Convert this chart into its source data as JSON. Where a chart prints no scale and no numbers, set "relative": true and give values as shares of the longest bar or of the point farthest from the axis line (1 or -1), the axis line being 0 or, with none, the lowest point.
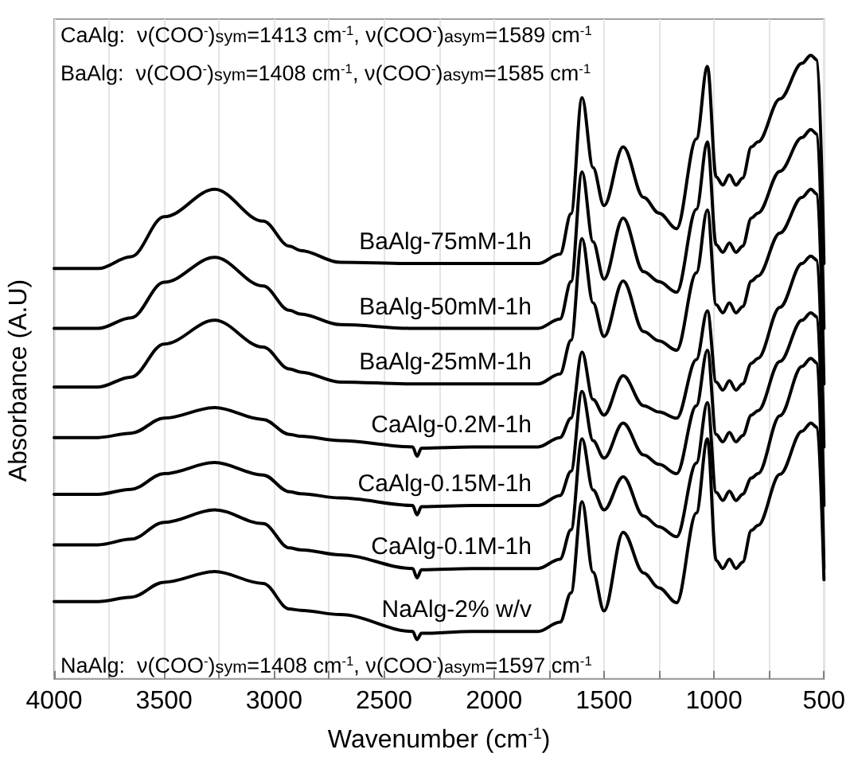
{
  "chart_data": {
    "type": "line",
    "relative": true,
    "xlabel": "Wavenumber (cm$^{-1}$)",
    "ylabel": "Absorbance (A.U)",
    "x": [
      4000,
      3800,
      3650,
      3500,
      3270,
      3050,
      2930,
      2880,
      2700,
      2370,
      2350,
      2330,
      2100,
      1800,
      1700,
      1650,
      1600,
      1550,
      1500,
      1413,
      1320,
      1250,
      1170,
      1080,
      1030,
      990,
      960,
      930,
      900,
      870,
      830,
      800,
      700,
      600,
      560,
      530,
      500
    ],
    "xlim": [
      4000,
      500
    ],
    "xticks": [
      4000,
      {
        "value": 3750,
        "label": null
      },
      3500,
      {
        "value": 3250,
        "label": null
      },
      3000,
      {
        "value": 2750,
        "label": null
      },
      2500,
      {
        "value": 2250,
        "label": null
      },
      2000,
      {
        "value": 1750,
        "label": null
      },
      1500,
      {
        "value": 1250,
        "label": null
      },
      1000,
      {
        "value": 750,
        "label": null
      },
      500
    ],
    "grid": "x",
    "legend": false,
    "marker": "none",
    "line_style": "solid",
    "series": [
      {
        "name": "BaAlg-75mM-1h",
        "color": "#000000",
        "values": [
          0.658,
          0.658,
          0.677,
          0.741,
          0.785,
          0.734,
          0.694,
          0.687,
          0.668,
          0.666,
          0.666,
          0.666,
          0.666,
          0.666,
          0.681,
          0.746,
          0.932,
          0.82,
          0.759,
          0.853,
          0.772,
          0.747,
          0.722,
          0.866,
          0.982,
          0.805,
          0.792,
          0.808,
          0.792,
          0.803,
          0.853,
          0.861,
          0.93,
          0.987,
          1.0,
          0.992,
          0.666
        ]
      },
      {
        "name": "BaAlg-50mM-1h",
        "color": "#000000",
        "values": [
          0.562,
          0.562,
          0.579,
          0.636,
          0.676,
          0.63,
          0.591,
          0.585,
          0.568,
          0.562,
          0.562,
          0.562,
          0.562,
          0.562,
          0.577,
          0.637,
          0.813,
          0.701,
          0.641,
          0.739,
          0.653,
          0.637,
          0.62,
          0.753,
          0.861,
          0.696,
          0.684,
          0.699,
          0.684,
          0.694,
          0.739,
          0.747,
          0.814,
          0.868,
          0.881,
          0.873,
          0.562
        ]
      },
      {
        "name": "BaAlg-25mM-1h",
        "color": "#000000",
        "values": [
          0.468,
          0.468,
          0.484,
          0.537,
          0.575,
          0.532,
          0.497,
          0.492,
          0.476,
          0.473,
          0.473,
          0.473,
          0.473,
          0.473,
          0.489,
          0.543,
          0.706,
          0.603,
          0.549,
          0.638,
          0.557,
          0.542,
          0.527,
          0.651,
          0.752,
          0.6,
          0.587,
          0.603,
          0.587,
          0.597,
          0.638,
          0.646,
          0.715,
          0.772,
          0.785,
          0.777,
          0.473
        ]
      },
      {
        "name": "CaAlg-0.2M-1h",
        "color": "#000000",
        "values": [
          0.387,
          0.387,
          0.394,
          0.418,
          0.435,
          0.416,
          0.392,
          0.389,
          0.382,
          0.372,
          0.357,
          0.37,
          0.372,
          0.372,
          0.387,
          0.418,
          0.524,
          0.448,
          0.423,
          0.486,
          0.438,
          0.428,
          0.418,
          0.512,
          0.59,
          0.476,
          0.463,
          0.478,
          0.463,
          0.473,
          0.506,
          0.514,
          0.596,
          0.666,
          0.678,
          0.671,
          0.372
        ]
      },
      {
        "name": "CaAlg-0.15M-1h",
        "color": "#000000",
        "values": [
          0.296,
          0.296,
          0.304,
          0.329,
          0.347,
          0.327,
          0.3,
          0.297,
          0.29,
          0.278,
          0.263,
          0.276,
          0.278,
          0.278,
          0.294,
          0.333,
          0.461,
          0.382,
          0.354,
          0.41,
          0.359,
          0.344,
          0.329,
          0.438,
          0.527,
          0.392,
          0.38,
          0.395,
          0.38,
          0.39,
          0.423,
          0.43,
          0.509,
          0.575,
          0.587,
          0.58,
          0.278
        ]
      },
      {
        "name": "CaAlg-0.1M-1h",
        "color": "#000000",
        "values": [
          0.215,
          0.215,
          0.224,
          0.251,
          0.271,
          0.249,
          0.21,
          0.207,
          0.199,
          0.177,
          0.162,
          0.175,
          0.177,
          0.177,
          0.192,
          0.239,
          0.385,
          0.303,
          0.271,
          0.324,
          0.261,
          0.244,
          0.228,
          0.346,
          0.443,
          0.299,
          0.286,
          0.301,
          0.286,
          0.296,
          0.322,
          0.329,
          0.422,
          0.501,
          0.514,
          0.506,
          0.177
        ]
      },
      {
        "name": "NaAlg-2% w/v",
        "color": "#000000",
        "values": [
          0.124,
          0.124,
          0.131,
          0.155,
          0.172,
          0.153,
          0.112,
          0.11,
          0.103,
          0.076,
          0.063,
          0.073,
          0.076,
          0.076,
          0.091,
          0.138,
          0.284,
          0.171,
          0.109,
          0.235,
          0.17,
          0.146,
          0.122,
          0.266,
          0.385,
          0.19,
          0.177,
          0.192,
          0.177,
          0.187,
          0.238,
          0.246,
          0.328,
          0.397,
          0.41,
          0.403,
          0.159
        ]
      }
    ],
    "annotations": [
      "CaAlg:  ν(COO$^{-}$)$_{sym}$=1413 cm$^{-1}$, ν(COO$^{-}$)$_{asym}$=1589 cm$^{-1}$",
      "BaAlg:  ν(COO$^{-}$)$_{sym}$=1408 cm$^{-1}$, ν(COO$^{-}$)$_{asym}$=1585 cm$^{-1}$",
      "NaAlg:  ν(COO$^{-}$)$_{sym}$=1408 cm$^{-1}$, ν(COO$^{-}$)$_{asym}$=1597 cm$^{-1}$"
    ]
  }
}
